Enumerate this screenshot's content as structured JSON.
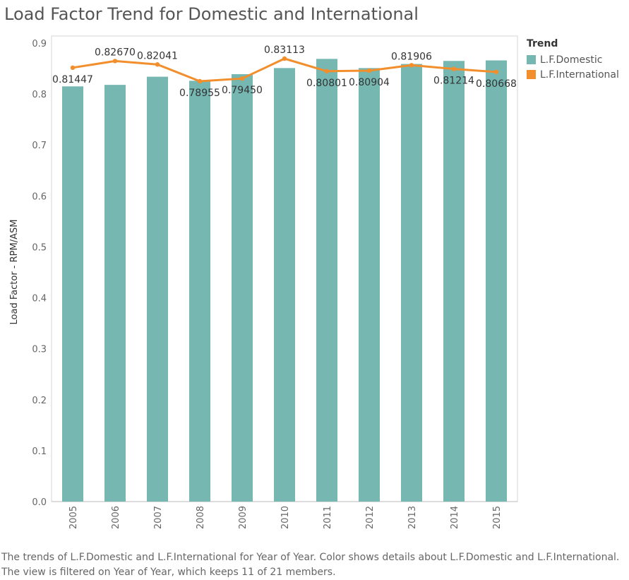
{
  "title": "Load Factor Trend for Domestic and International",
  "caption": "The trends of L.F.Domestic and L.F.International for Year of Year.  Color shows details about L.F.Domestic and L.F.International. The view is filtered on Year of Year, which keeps 11 of 21 members.",
  "legend": {
    "title": "Trend",
    "items": [
      "L.F.Domestic",
      "L.F.International"
    ]
  },
  "colors": {
    "domestic": "#76b7b2",
    "international": "#f28e2b"
  },
  "chart_data": {
    "type": "bar",
    "categories": [
      "2005",
      "2006",
      "2007",
      "2008",
      "2009",
      "2010",
      "2011",
      "2012",
      "2013",
      "2014",
      "2015"
    ],
    "series": [
      {
        "name": "L.F.Domestic",
        "type": "bar",
        "values": [
          0.815,
          0.818,
          0.834,
          0.826,
          0.839,
          0.851,
          0.869,
          0.851,
          0.859,
          0.865,
          0.866
        ]
      },
      {
        "name": "L.F.International",
        "type": "line",
        "values": [
          0.81447,
          0.8267,
          0.82041,
          0.78955,
          0.7945,
          0.83113,
          0.80801,
          0.80904,
          0.81906,
          0.81214,
          0.80668
        ],
        "labels": [
          "0.81447",
          "0.82670",
          "0.82041",
          "0.78955",
          "0.79450",
          "0.83113",
          "0.80801",
          "0.80904",
          "0.81906",
          "0.81214",
          "0.80668"
        ]
      }
    ],
    "ylabel": "Load Factor - RPM/ASM",
    "xlabel": "",
    "yticks": [
      "0.0",
      "0.1",
      "0.2",
      "0.3",
      "0.4",
      "0.5",
      "0.6",
      "0.7",
      "0.8",
      "0.9"
    ],
    "ylim": [
      0,
      0.9
    ],
    "grid": false,
    "legend_position": "right"
  }
}
